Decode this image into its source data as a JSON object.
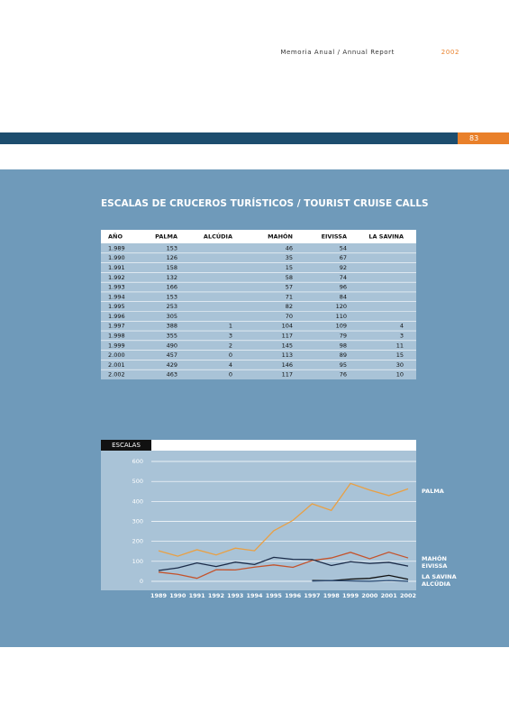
{
  "header": {
    "title": "Memoria Anual / Annual Report",
    "year": "2002",
    "page_number": "83"
  },
  "section_title": "ESCALAS DE CRUCEROS TURÍSTICOS / TOURIST CRUISE CALLS",
  "table": {
    "columns": [
      "AÑO",
      "PALMA",
      "ALCÚDIA",
      "MAHÓN",
      "EIVISSA",
      "LA SAVINA"
    ],
    "rows": [
      [
        "1.989",
        153,
        null,
        46,
        54,
        null
      ],
      [
        "1.990",
        126,
        null,
        35,
        67,
        null
      ],
      [
        "1.991",
        158,
        null,
        15,
        92,
        null
      ],
      [
        "1.992",
        132,
        null,
        58,
        74,
        null
      ],
      [
        "1.993",
        166,
        null,
        57,
        96,
        null
      ],
      [
        "1.994",
        153,
        null,
        71,
        84,
        null
      ],
      [
        "1.995",
        253,
        null,
        82,
        120,
        null
      ],
      [
        "1.996",
        305,
        null,
        70,
        110,
        null
      ],
      [
        "1.997",
        388,
        1,
        104,
        109,
        4
      ],
      [
        "1.998",
        355,
        3,
        117,
        79,
        3
      ],
      [
        "1.999",
        490,
        2,
        145,
        98,
        11
      ],
      [
        "2.000",
        457,
        0,
        113,
        89,
        15
      ],
      [
        "2.001",
        429,
        4,
        146,
        95,
        30
      ],
      [
        "2.002",
        463,
        0,
        117,
        76,
        10
      ]
    ]
  },
  "chart_data": {
    "type": "line",
    "title": "ESCALAS",
    "categories": [
      "1989",
      "1990",
      "1991",
      "1992",
      "1993",
      "1994",
      "1995",
      "1996",
      "1997",
      "1998",
      "1999",
      "2000",
      "2001",
      "2002"
    ],
    "ylim": [
      0,
      600
    ],
    "yticks": [
      0,
      100,
      200,
      300,
      400,
      500,
      600
    ],
    "grid": true,
    "series": [
      {
        "name": "PALMA",
        "color": "#e9a044",
        "values": [
          153,
          126,
          158,
          132,
          166,
          153,
          253,
          305,
          388,
          355,
          490,
          457,
          429,
          463
        ]
      },
      {
        "name": "MAHÓN",
        "color": "#c4532c",
        "values": [
          46,
          35,
          15,
          58,
          57,
          71,
          82,
          70,
          104,
          117,
          145,
          113,
          146,
          117
        ]
      },
      {
        "name": "EIVISSA",
        "color": "#1b2b48",
        "values": [
          54,
          67,
          92,
          74,
          96,
          84,
          120,
          110,
          109,
          79,
          98,
          89,
          95,
          76
        ]
      },
      {
        "name": "LA SAVINA",
        "color": "#111111",
        "values": [
          null,
          null,
          null,
          null,
          null,
          null,
          null,
          null,
          4,
          3,
          11,
          15,
          30,
          10
        ]
      },
      {
        "name": "ALCÚDIA",
        "color": "#2c4c74",
        "values": [
          null,
          null,
          null,
          null,
          null,
          null,
          null,
          null,
          1,
          3,
          2,
          0,
          4,
          0
        ]
      }
    ]
  }
}
